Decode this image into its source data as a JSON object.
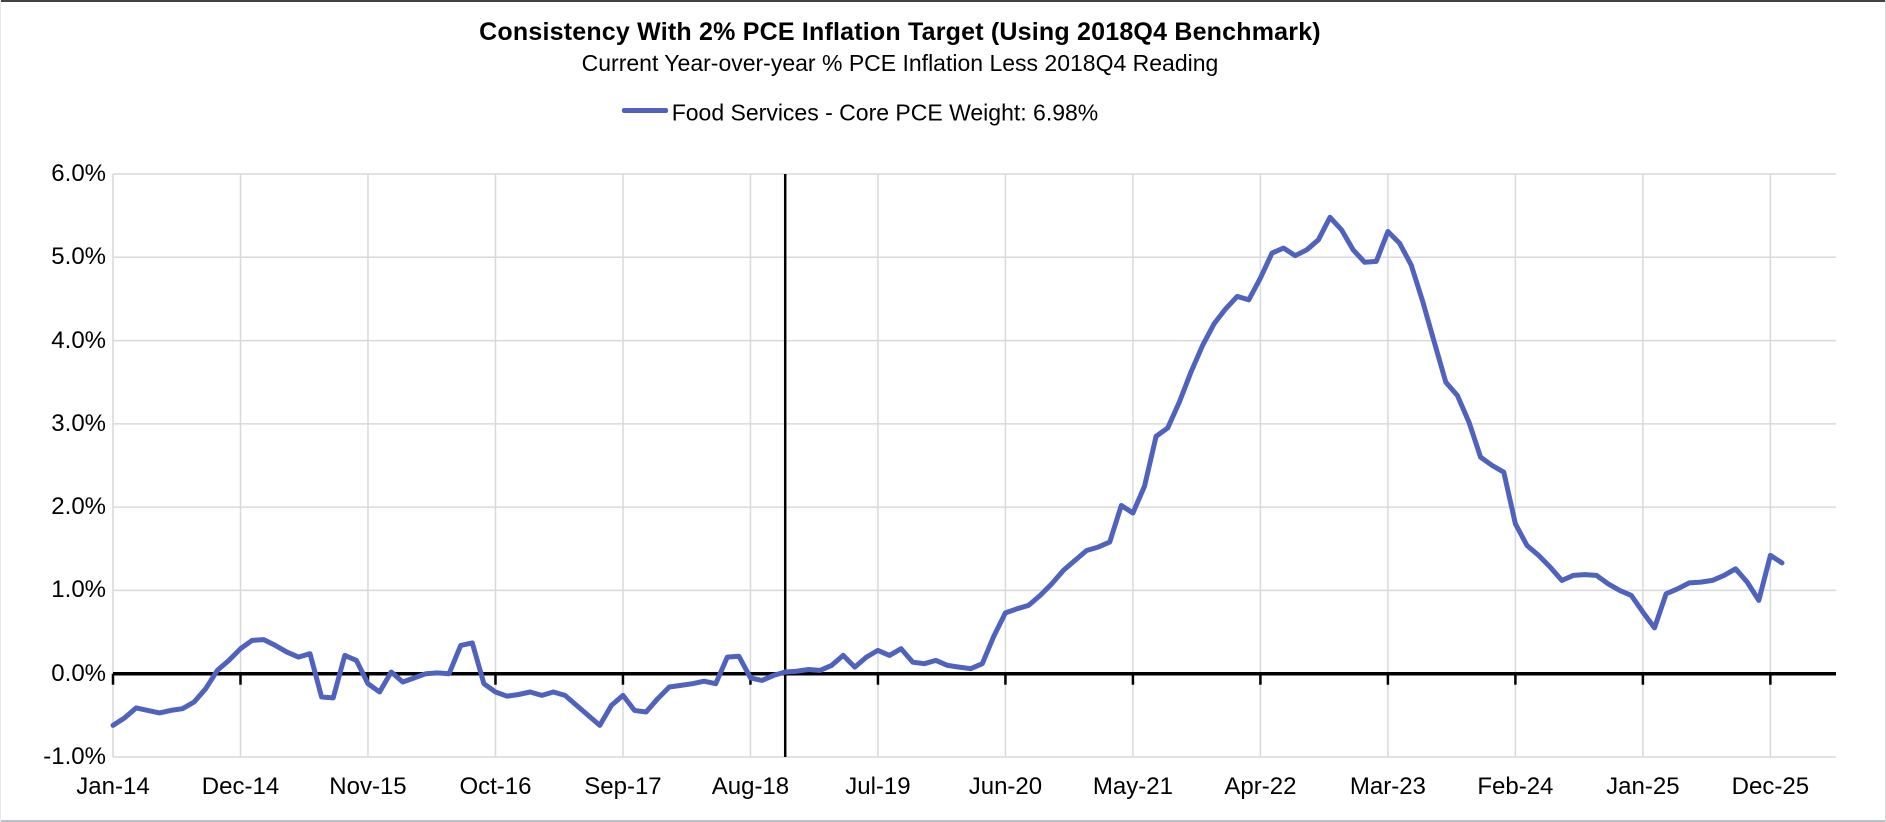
{
  "header": {
    "title": "Consistency With 2% PCE Inflation Target (Using 2018Q4 Benchmark)",
    "subtitle": "Current Year-over-year % PCE Inflation Less 2018Q4 Reading"
  },
  "legend": {
    "label": "Food Services - Core PCE Weight: 6.98%",
    "marker_color": "#4f63be"
  },
  "colors": {
    "line": "#4f63be",
    "gridline": "#d9d9d9",
    "axis": "#000000",
    "text": "#000000"
  },
  "y_axis": {
    "tick_labels": [
      "6.0%",
      "5.0%",
      "4.0%",
      "3.0%",
      "2.0%",
      "1.0%",
      "0.0%",
      "-1.0%"
    ],
    "tick_values": [
      6,
      5,
      4,
      3,
      2,
      1,
      0,
      -1
    ]
  },
  "x_axis": {
    "tick_labels": [
      "Jan-14",
      "Dec-14",
      "Nov-15",
      "Oct-16",
      "Sep-17",
      "Aug-18",
      "Jul-19",
      "Jun-20",
      "May-21",
      "Apr-22",
      "Mar-23",
      "Feb-24",
      "Jan-25",
      "Dec-25"
    ],
    "tick_month_indices": [
      0,
      11,
      22,
      33,
      44,
      55,
      66,
      77,
      88,
      99,
      110,
      121,
      132,
      143
    ]
  },
  "chart_data": {
    "type": "line",
    "title": "Consistency With 2% PCE Inflation Target (Using 2018Q4 Benchmark)",
    "subtitle": "Current Year-over-year % PCE Inflation Less 2018Q4 Reading",
    "ylim": [
      -1,
      6
    ],
    "y_tick_format": "percent_1dp",
    "grid": true,
    "legend_position": "top-center",
    "zero_axis_emphasized": true,
    "benchmark_vline_month": "Nov-18",
    "benchmark_vline_month_index": 58,
    "x_tick_labels": [
      "Jan-14",
      "Dec-14",
      "Nov-15",
      "Oct-16",
      "Sep-17",
      "Aug-18",
      "Jul-19",
      "Jun-20",
      "May-21",
      "Apr-22",
      "Mar-23",
      "Feb-24",
      "Jan-25",
      "Dec-25"
    ],
    "series": [
      {
        "name": "Food Services - Core PCE Weight: 6.98%",
        "color": "#4f63be",
        "start_month": "Jan-2014",
        "end_month": "Jan-2026",
        "frequency": "monthly",
        "unit": "percent",
        "values": [
          -0.62,
          -0.53,
          -0.41,
          -0.44,
          -0.47,
          -0.44,
          -0.42,
          -0.34,
          -0.18,
          0.04,
          0.16,
          0.3,
          0.4,
          0.41,
          0.34,
          0.26,
          0.2,
          0.24,
          -0.28,
          -0.29,
          0.22,
          0.16,
          -0.12,
          -0.22,
          0.02,
          -0.1,
          -0.05,
          0.0,
          0.01,
          0.0,
          0.34,
          0.37,
          -0.12,
          -0.22,
          -0.27,
          -0.25,
          -0.22,
          -0.26,
          -0.22,
          -0.26,
          -0.38,
          -0.5,
          -0.62,
          -0.38,
          -0.26,
          -0.44,
          -0.46,
          -0.3,
          -0.16,
          -0.14,
          -0.12,
          -0.09,
          -0.12,
          0.2,
          0.21,
          -0.05,
          -0.08,
          -0.02,
          0.02,
          0.03,
          0.05,
          0.04,
          0.1,
          0.22,
          0.08,
          0.2,
          0.28,
          0.22,
          0.3,
          0.14,
          0.12,
          0.16,
          0.1,
          0.08,
          0.06,
          0.12,
          0.45,
          0.73,
          0.78,
          0.82,
          0.94,
          1.08,
          1.24,
          1.36,
          1.48,
          1.52,
          1.58,
          2.02,
          1.93,
          2.25,
          2.85,
          2.95,
          3.26,
          3.62,
          3.94,
          4.2,
          4.38,
          4.53,
          4.49,
          4.75,
          5.05,
          5.11,
          5.02,
          5.09,
          5.21,
          5.48,
          5.33,
          5.09,
          4.94,
          4.95,
          5.31,
          5.17,
          4.91,
          4.47,
          3.98,
          3.5,
          3.34,
          3.02,
          2.6,
          2.5,
          2.42,
          1.8,
          1.54,
          1.42,
          1.28,
          1.12,
          1.18,
          1.19,
          1.18,
          1.08,
          1.0,
          0.94,
          0.74,
          0.55,
          0.96,
          1.02,
          1.09,
          1.1,
          1.12,
          1.18,
          1.26,
          1.1,
          0.88,
          1.42,
          1.33
        ]
      }
    ]
  }
}
